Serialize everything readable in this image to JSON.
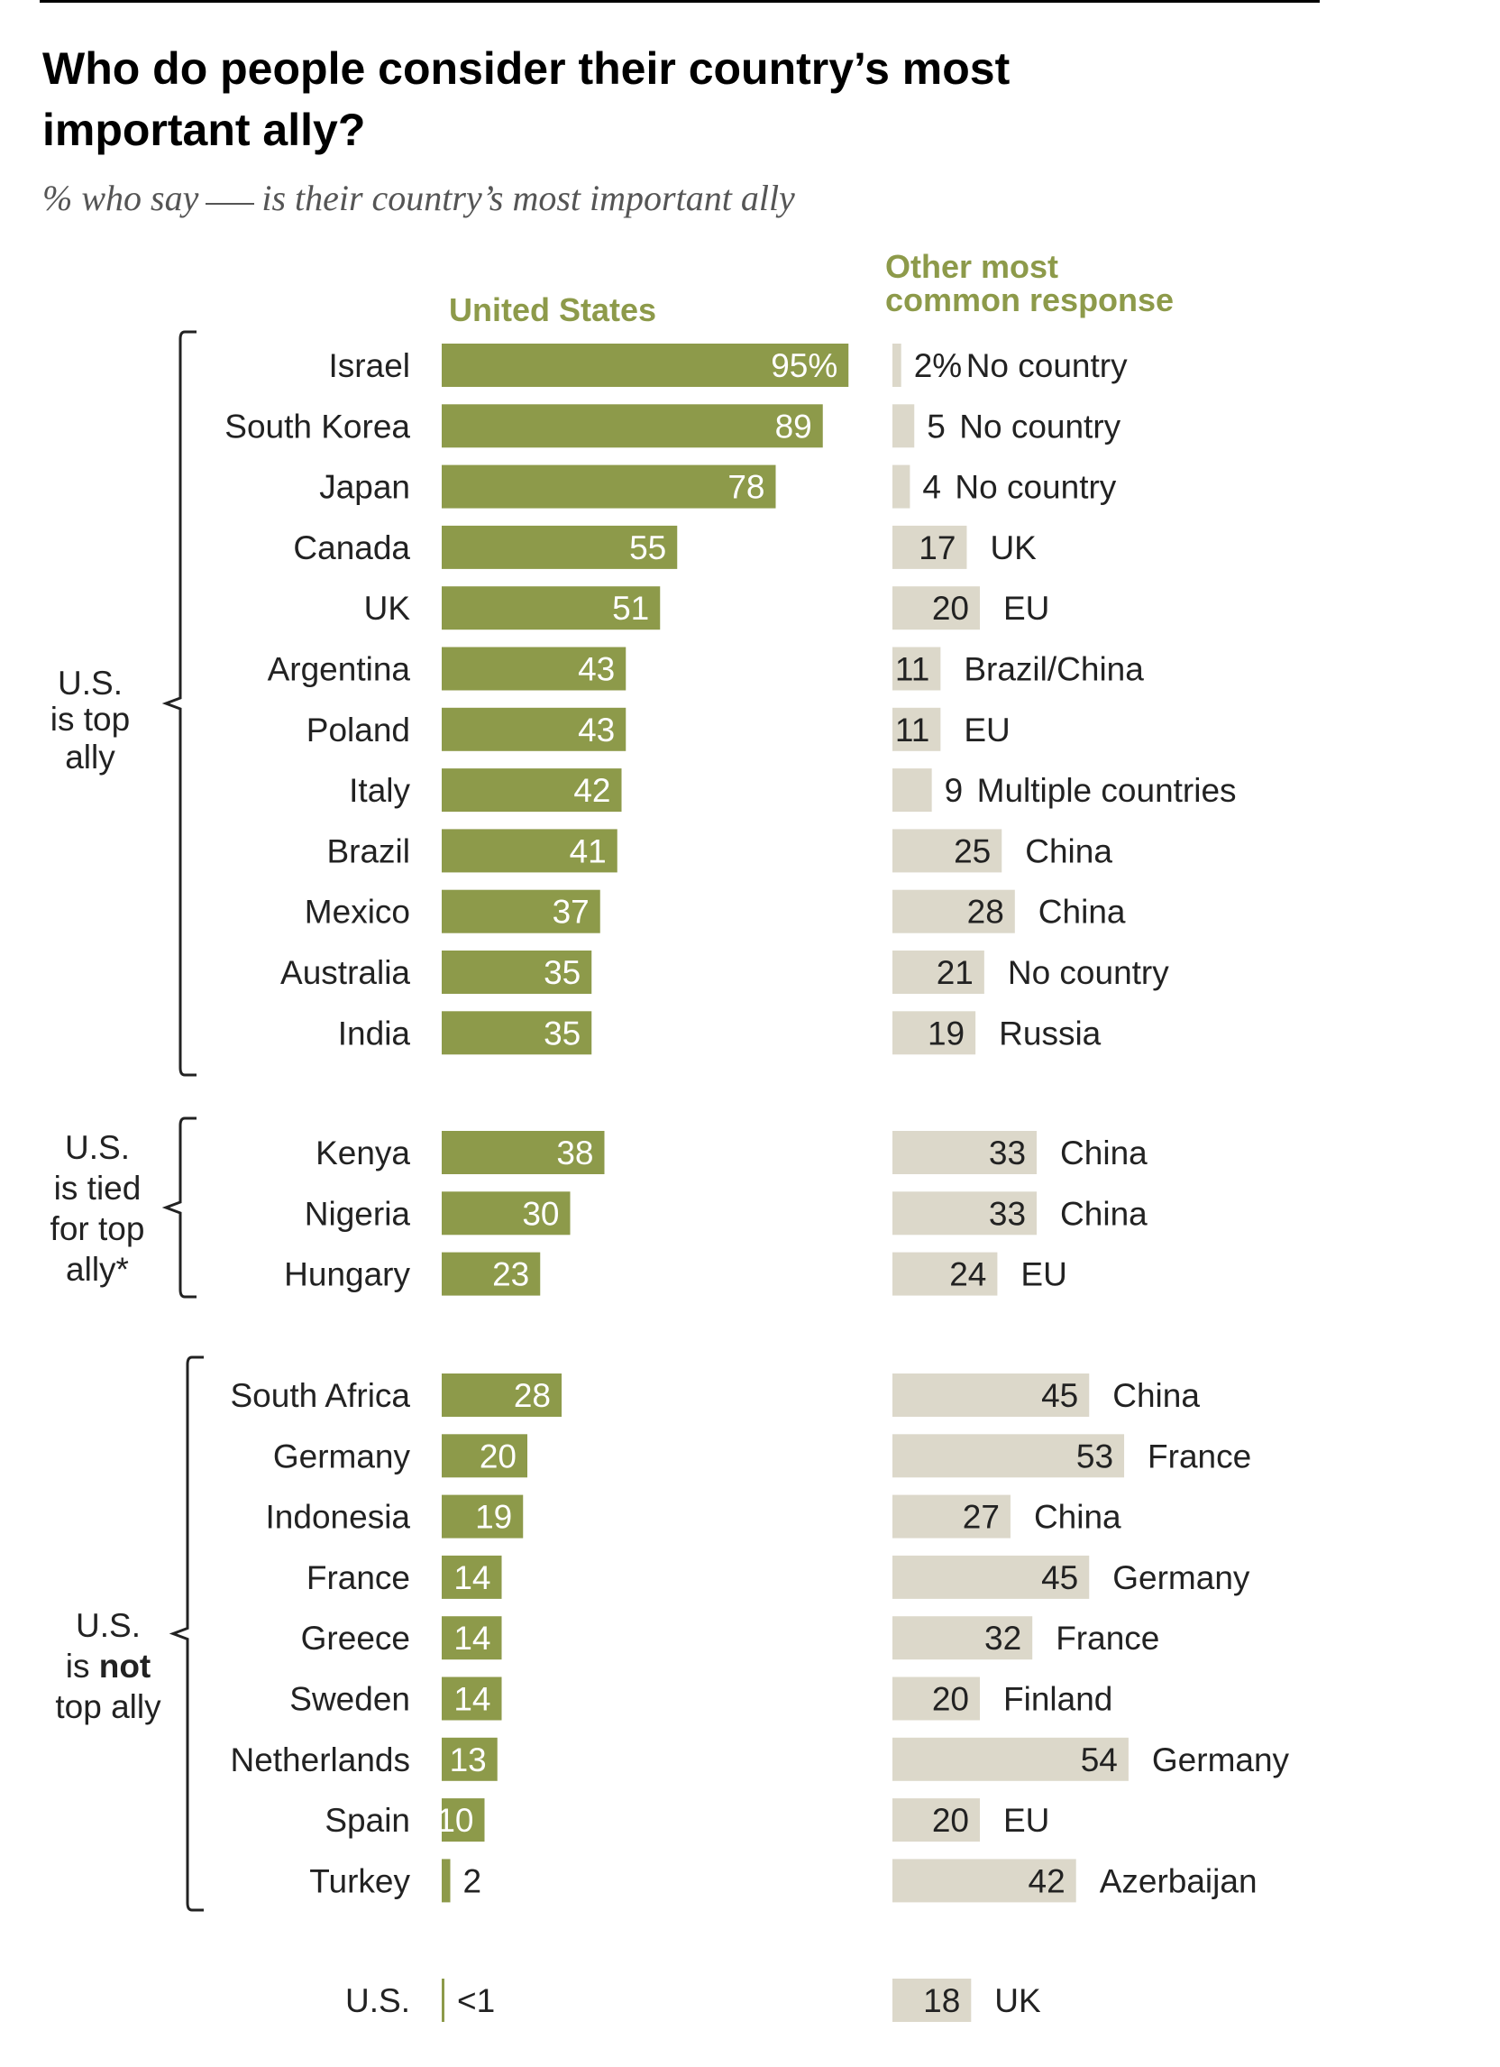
{
  "title": "Who do people consider their country’s most important ally?",
  "subtitle_before": "% who say",
  "subtitle_after": "is their country’s most important ally",
  "colors": {
    "us_bar": "#8d9a4a",
    "other_bar": "#dcd8ca",
    "header": "#8d9a4a"
  },
  "chart_data": {
    "type": "bar",
    "series": [
      {
        "name": "United States",
        "values": [
          95,
          89,
          78,
          55,
          51,
          43,
          43,
          42,
          41,
          37,
          35,
          35,
          38,
          30,
          23,
          28,
          20,
          19,
          14,
          14,
          14,
          13,
          10,
          2,
          0.5
        ]
      },
      {
        "name": "Other most common response",
        "values": [
          2,
          5,
          4,
          17,
          20,
          11,
          11,
          9,
          25,
          28,
          21,
          19,
          33,
          33,
          24,
          45,
          53,
          27,
          45,
          32,
          20,
          54,
          20,
          42,
          18
        ]
      }
    ],
    "groups": [
      {
        "label_lines": [
          "U.S.",
          "is top",
          "ally"
        ],
        "rows": [
          {
            "country": "Israel",
            "us": 95,
            "us_label": "95%",
            "other": 2,
            "other_label": "2%",
            "other_name": "No country"
          },
          {
            "country": "South Korea",
            "us": 89,
            "us_label": "89",
            "other": 5,
            "other_label": "5",
            "other_name": "No country"
          },
          {
            "country": "Japan",
            "us": 78,
            "us_label": "78",
            "other": 4,
            "other_label": "4",
            "other_name": "No country"
          },
          {
            "country": "Canada",
            "us": 55,
            "us_label": "55",
            "other": 17,
            "other_label": "17",
            "other_name": "UK"
          },
          {
            "country": "UK",
            "us": 51,
            "us_label": "51",
            "other": 20,
            "other_label": "20",
            "other_name": "EU"
          },
          {
            "country": "Argentina",
            "us": 43,
            "us_label": "43",
            "other": 11,
            "other_label": "11",
            "other_name": "Brazil/China"
          },
          {
            "country": "Poland",
            "us": 43,
            "us_label": "43",
            "other": 11,
            "other_label": "11",
            "other_name": "EU"
          },
          {
            "country": "Italy",
            "us": 42,
            "us_label": "42",
            "other": 9,
            "other_label": "9",
            "other_name": "Multiple countries"
          },
          {
            "country": "Brazil",
            "us": 41,
            "us_label": "41",
            "other": 25,
            "other_label": "25",
            "other_name": "China"
          },
          {
            "country": "Mexico",
            "us": 37,
            "us_label": "37",
            "other": 28,
            "other_label": "28",
            "other_name": "China"
          },
          {
            "country": "Australia",
            "us": 35,
            "us_label": "35",
            "other": 21,
            "other_label": "21",
            "other_name": "No country"
          },
          {
            "country": "India",
            "us": 35,
            "us_label": "35",
            "other": 19,
            "other_label": "19",
            "other_name": "Russia"
          }
        ]
      },
      {
        "label_lines": [
          "U.S.",
          "is tied",
          "for top",
          "ally*"
        ],
        "rows": [
          {
            "country": "Kenya",
            "us": 38,
            "us_label": "38",
            "other": 33,
            "other_label": "33",
            "other_name": "China"
          },
          {
            "country": "Nigeria",
            "us": 30,
            "us_label": "30",
            "other": 33,
            "other_label": "33",
            "other_name": "China"
          },
          {
            "country": "Hungary",
            "us": 23,
            "us_label": "23",
            "other": 24,
            "other_label": "24",
            "other_name": "EU"
          }
        ]
      },
      {
        "label_lines": [
          "U.S.",
          "is not",
          "top ally"
        ],
        "rows": [
          {
            "country": "South Africa",
            "us": 28,
            "us_label": "28",
            "other": 45,
            "other_label": "45",
            "other_name": "China"
          },
          {
            "country": "Germany",
            "us": 20,
            "us_label": "20",
            "other": 53,
            "other_label": "53",
            "other_name": "France"
          },
          {
            "country": "Indonesia",
            "us": 19,
            "us_label": "19",
            "other": 27,
            "other_label": "27",
            "other_name": "China"
          },
          {
            "country": "France",
            "us": 14,
            "us_label": "14",
            "other": 45,
            "other_label": "45",
            "other_name": "Germany"
          },
          {
            "country": "Greece",
            "us": 14,
            "us_label": "14",
            "other": 32,
            "other_label": "32",
            "other_name": "France"
          },
          {
            "country": "Sweden",
            "us": 14,
            "us_label": "14",
            "other": 20,
            "other_label": "20",
            "other_name": "Finland"
          },
          {
            "country": "Netherlands",
            "us": 13,
            "us_label": "13",
            "other": 54,
            "other_label": "54",
            "other_name": "Germany"
          },
          {
            "country": "Spain",
            "us": 10,
            "us_label": "10",
            "other": 20,
            "other_label": "20",
            "other_name": "EU"
          },
          {
            "country": "Turkey",
            "us": 2,
            "us_label": "2",
            "other": 42,
            "other_label": "42",
            "other_name": "Azerbaijan"
          }
        ]
      },
      {
        "label_lines": [],
        "rows": [
          {
            "country": "U.S.",
            "us": 0.5,
            "us_label": "<1",
            "other": 18,
            "other_label": "18",
            "other_name": "UK"
          }
        ]
      }
    ]
  }
}
